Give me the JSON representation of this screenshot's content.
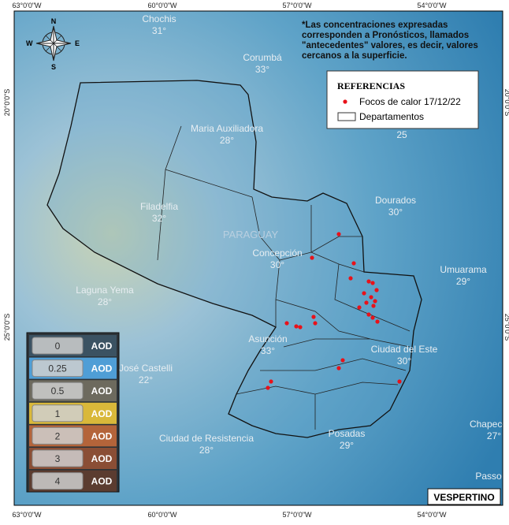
{
  "graticule": {
    "top": [
      "63°0'0\"W",
      "60°0'0\"W",
      "57°0'0\"W",
      "54°0'0\"W"
    ],
    "bottom": [
      "63°0'0\"W",
      "60°0'0\"W",
      "57°0'0\"W",
      "54°0'0\"W"
    ],
    "left": [
      "20°0'0\"S",
      "25°0'0\"S"
    ],
    "right": [
      "20°0'0\"S",
      "25°0'0\"S"
    ]
  },
  "compass": {
    "n": "N",
    "s": "S",
    "e": "E",
    "w": "W"
  },
  "note": [
    "*Las concentraciones expresadas",
    "corresponden a Pronósticos, llamados",
    "\"antecedentes\" valores, es decir, valores",
    "cercanos a la superficie."
  ],
  "legend": {
    "title": "REFERENCIAS",
    "items": [
      "Focos de calor 17/12/22",
      "Departamentos"
    ]
  },
  "country": "PARAGUAY",
  "places": [
    {
      "name": "Chochis",
      "temp": "31°"
    },
    {
      "name": "Corumbá",
      "temp": "33°"
    },
    {
      "name": "Maria Auxiliadora",
      "temp": "28°"
    },
    {
      "name": "Filadelfia",
      "temp": "32°"
    },
    {
      "name": "Concepción",
      "temp": "30°"
    },
    {
      "name": "Dourados",
      "temp": "30°"
    },
    {
      "name": "Umuarama",
      "temp": "29°"
    },
    {
      "name": "Laguna Yema",
      "temp": "28°"
    },
    {
      "name": "Asunción",
      "temp": "33°"
    },
    {
      "name": "José Castelli",
      "temp": "22°"
    },
    {
      "name": "Ciudad del Este",
      "temp": "30°"
    },
    {
      "name": "Ciudad de Resistencia",
      "temp": "28°"
    },
    {
      "name": "Posadas",
      "temp": "29°"
    },
    {
      "name": "Chapecó",
      "temp": "27°"
    },
    {
      "name": "Passo"
    }
  ],
  "partial_labels": [
    "25"
  ],
  "aod_scale": {
    "levels": [
      "0",
      "0.25",
      "0.5",
      "1",
      "2",
      "3",
      "4"
    ],
    "unit": "AOD"
  },
  "period": "VESPERTINO"
}
